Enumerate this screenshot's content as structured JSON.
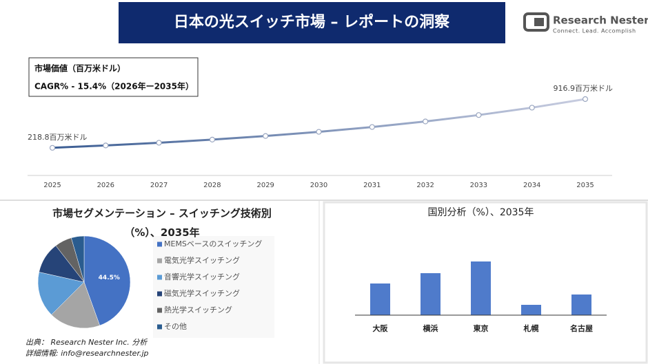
{
  "header": {
    "title": "日本の光スイッチ市場 – レポートの洞察",
    "logo_name": "Research Nester",
    "logo_tagline": "Connect. Lead. Accomplish"
  },
  "info_box": {
    "line1": "市場価値（百万米ドル）",
    "line2": "CAGR% - 15.4%（2026年ー2035年）"
  },
  "chart_data": [
    {
      "type": "line",
      "categories": [
        "2025",
        "2026",
        "2027",
        "2028",
        "2029",
        "2030",
        "2031",
        "2032",
        "2033",
        "2034",
        "2035"
      ],
      "series": [
        {
          "color": "#3b5d93",
          "values": [
            218.8,
            252.5,
            291.4,
            336.3,
            388.0,
            447.8,
            516.8,
            596.3,
            688.2,
            794.2,
            916.9
          ],
          "value_labels": [
            "218.8百万米ドル",
            null,
            null,
            null,
            null,
            null,
            null,
            null,
            null,
            null,
            "916.9百万米ドル"
          ]
        }
      ],
      "ylim": [
        0,
        1400
      ]
    },
    {
      "type": "pie",
      "title": "市場セグメンテーション – スイッチング技術別（%）、2035年",
      "categories": [
        "MEMSベースのスイッチング",
        "電気光学スイッチング",
        "音響光学スイッチング",
        "磁気光学スイッチング",
        "熱光学スイッチング",
        "その他"
      ],
      "values": [
        44.5,
        18,
        16,
        11,
        6,
        4.5
      ],
      "value_labels": [
        "44.5%",
        null,
        null,
        null,
        null,
        null
      ],
      "colors": [
        "#4472c4",
        "#a5a5a5",
        "#5b9bd5",
        "#264478",
        "#636363",
        "#2a5c8f"
      ]
    },
    {
      "type": "bar",
      "title": "国別分析（%）、2035年",
      "categories": [
        "大阪",
        "横浜",
        "東京",
        "札幌",
        "名古屋"
      ],
      "values": [
        46,
        61,
        78,
        15,
        30
      ],
      "color": "#4f7bcb",
      "ylim": [
        0,
        100
      ]
    }
  ],
  "footer": {
    "source": "出典： Research Nester Inc. 分析",
    "contact": "詳細情報: info@researchnester.jp"
  }
}
